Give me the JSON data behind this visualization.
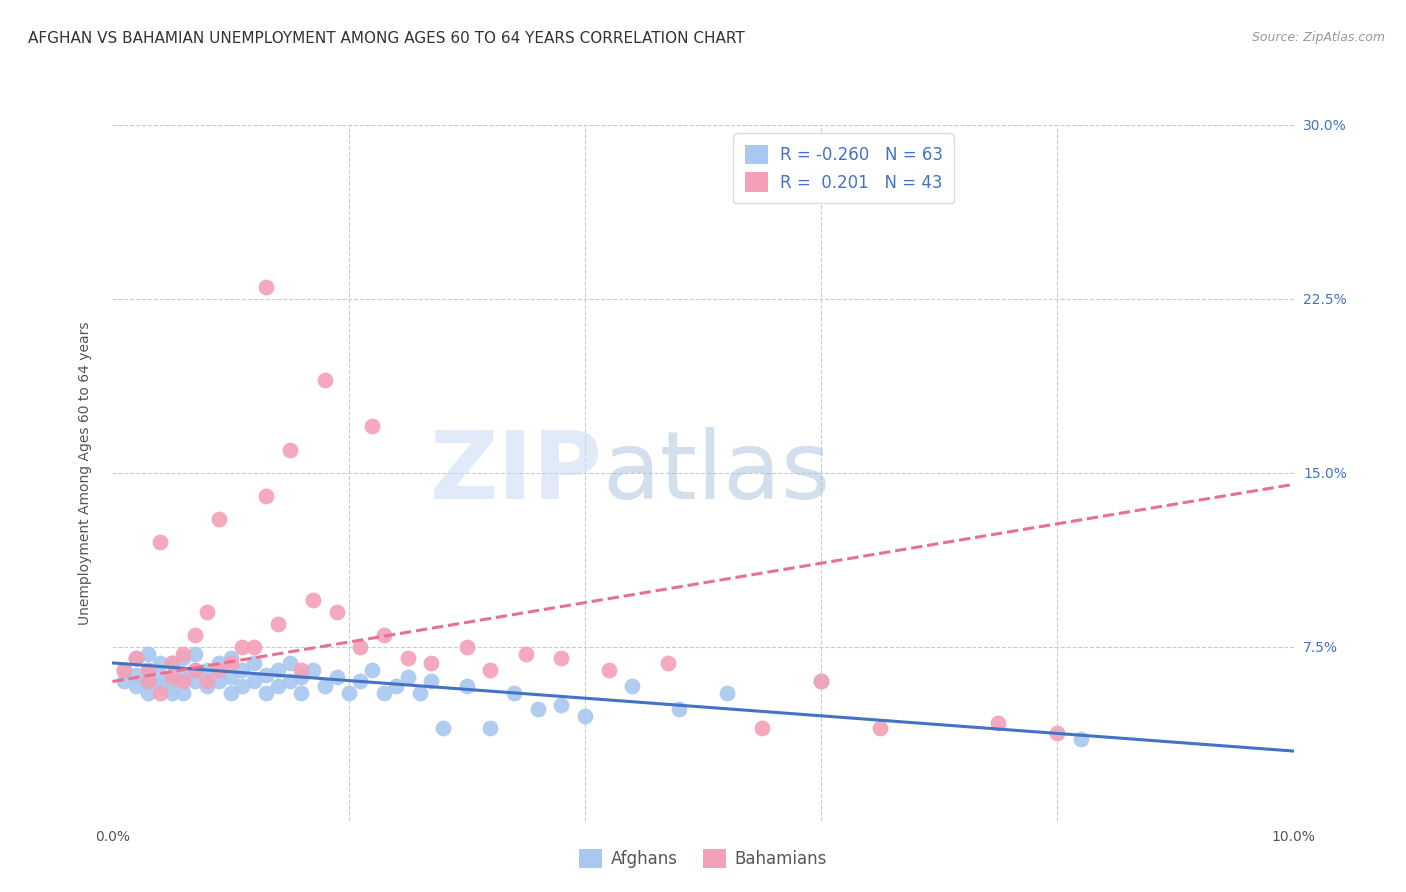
{
  "title": "AFGHAN VS BAHAMIAN UNEMPLOYMENT AMONG AGES 60 TO 64 YEARS CORRELATION CHART",
  "source": "Source: ZipAtlas.com",
  "ylabel": "Unemployment Among Ages 60 to 64 years",
  "xlim": [
    0.0,
    0.1
  ],
  "ylim": [
    0.0,
    0.3
  ],
  "xticks": [
    0.0,
    0.02,
    0.04,
    0.06,
    0.08,
    0.1
  ],
  "xtick_labels": [
    "0.0%",
    "",
    "",
    "",
    "",
    "10.0%"
  ],
  "yticks": [
    0.0,
    0.075,
    0.15,
    0.225,
    0.3
  ],
  "ytick_labels_right": [
    "",
    "7.5%",
    "15.0%",
    "22.5%",
    "30.0%"
  ],
  "afghan_color": "#a8c8f0",
  "bahamian_color": "#f4a0b8",
  "afghan_line_color": "#4472c4",
  "bahamian_line_color": "#e87090",
  "grid_color": "#cccccc",
  "background_color": "#ffffff",
  "legend_R_color": "#4472c4",
  "watermark_zip": "ZIP",
  "watermark_atlas": "atlas",
  "afghan_R": -0.26,
  "afghan_N": 63,
  "bahamian_R": 0.201,
  "bahamian_N": 43,
  "afghan_line_x0": 0.0,
  "afghan_line_y0": 0.068,
  "afghan_line_x1": 0.1,
  "afghan_line_y1": 0.03,
  "bahamian_line_x0": 0.0,
  "bahamian_line_y0": 0.06,
  "bahamian_line_x1": 0.1,
  "bahamian_line_y1": 0.145,
  "afghan_x": [
    0.001,
    0.001,
    0.002,
    0.002,
    0.002,
    0.003,
    0.003,
    0.003,
    0.003,
    0.004,
    0.004,
    0.004,
    0.005,
    0.005,
    0.005,
    0.006,
    0.006,
    0.006,
    0.007,
    0.007,
    0.007,
    0.008,
    0.008,
    0.009,
    0.009,
    0.01,
    0.01,
    0.01,
    0.011,
    0.011,
    0.012,
    0.012,
    0.013,
    0.013,
    0.014,
    0.014,
    0.015,
    0.015,
    0.016,
    0.016,
    0.017,
    0.018,
    0.019,
    0.02,
    0.021,
    0.022,
    0.023,
    0.024,
    0.025,
    0.026,
    0.027,
    0.028,
    0.03,
    0.032,
    0.034,
    0.036,
    0.038,
    0.04,
    0.044,
    0.048,
    0.052,
    0.06,
    0.082
  ],
  "afghan_y": [
    0.06,
    0.065,
    0.058,
    0.063,
    0.07,
    0.055,
    0.06,
    0.065,
    0.072,
    0.058,
    0.063,
    0.068,
    0.055,
    0.06,
    0.068,
    0.055,
    0.062,
    0.07,
    0.06,
    0.065,
    0.072,
    0.058,
    0.065,
    0.06,
    0.068,
    0.055,
    0.062,
    0.07,
    0.058,
    0.065,
    0.06,
    0.068,
    0.055,
    0.063,
    0.058,
    0.065,
    0.06,
    0.068,
    0.055,
    0.062,
    0.065,
    0.058,
    0.062,
    0.055,
    0.06,
    0.065,
    0.055,
    0.058,
    0.062,
    0.055,
    0.06,
    0.04,
    0.058,
    0.04,
    0.055,
    0.048,
    0.05,
    0.045,
    0.058,
    0.048,
    0.055,
    0.06,
    0.035
  ],
  "bahamian_x": [
    0.001,
    0.002,
    0.003,
    0.003,
    0.004,
    0.004,
    0.005,
    0.005,
    0.006,
    0.006,
    0.007,
    0.007,
    0.008,
    0.008,
    0.009,
    0.009,
    0.01,
    0.011,
    0.012,
    0.013,
    0.014,
    0.015,
    0.016,
    0.017,
    0.019,
    0.021,
    0.023,
    0.025,
    0.027,
    0.03,
    0.032,
    0.035,
    0.038,
    0.042,
    0.047,
    0.055,
    0.06,
    0.065,
    0.075,
    0.08,
    0.013,
    0.018,
    0.022
  ],
  "bahamian_y": [
    0.065,
    0.07,
    0.06,
    0.065,
    0.055,
    0.12,
    0.062,
    0.068,
    0.06,
    0.072,
    0.065,
    0.08,
    0.06,
    0.09,
    0.065,
    0.13,
    0.068,
    0.075,
    0.075,
    0.14,
    0.085,
    0.16,
    0.065,
    0.095,
    0.09,
    0.075,
    0.08,
    0.07,
    0.068,
    0.075,
    0.065,
    0.072,
    0.07,
    0.065,
    0.068,
    0.04,
    0.06,
    0.04,
    0.042,
    0.038,
    0.23,
    0.19,
    0.17
  ],
  "title_fontsize": 11,
  "label_fontsize": 10,
  "tick_fontsize": 10,
  "legend_fontsize": 12
}
